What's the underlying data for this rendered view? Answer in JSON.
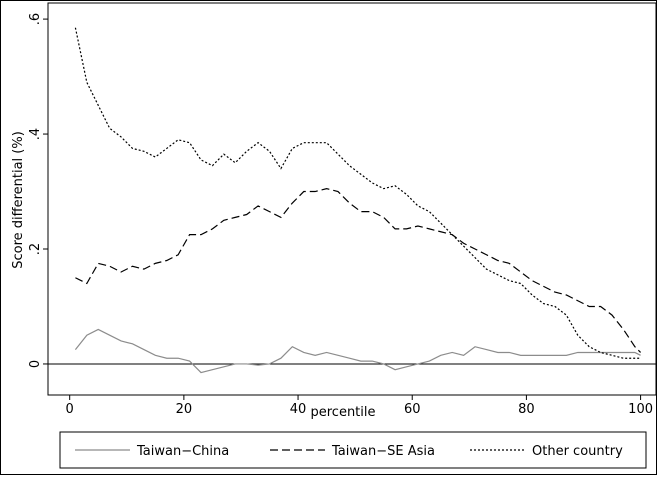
{
  "chart_data": {
    "type": "line",
    "ylabel": "Score differential (%)",
    "xlabel": "percentile",
    "x": [
      1,
      3,
      5,
      7,
      9,
      11,
      13,
      15,
      17,
      19,
      21,
      23,
      25,
      27,
      29,
      31,
      33,
      35,
      37,
      39,
      41,
      43,
      45,
      47,
      49,
      51,
      53,
      55,
      57,
      59,
      61,
      63,
      65,
      67,
      69,
      71,
      73,
      75,
      77,
      79,
      81,
      83,
      85,
      87,
      89,
      91,
      93,
      95,
      97,
      99,
      100
    ],
    "series": [
      {
        "name": "Taiwan−China",
        "color": "#8c8c8c",
        "dash": "solid",
        "values": [
          0.025,
          0.05,
          0.06,
          0.05,
          0.04,
          0.035,
          0.025,
          0.015,
          0.01,
          0.01,
          0.005,
          -0.015,
          -0.01,
          -0.005,
          0,
          0,
          -0.002,
          0,
          0.01,
          0.03,
          0.02,
          0.015,
          0.02,
          0.015,
          0.01,
          0.005,
          0.005,
          0,
          -0.01,
          -0.005,
          0,
          0.005,
          0.015,
          0.02,
          0.015,
          0.03,
          0.025,
          0.02,
          0.02,
          0.015,
          0.015,
          0.015,
          0.015,
          0.015,
          0.02,
          0.02,
          0.02,
          0.02,
          0.02,
          0.02,
          0.015
        ]
      },
      {
        "name": "Taiwan−SE Asia",
        "color": "#000000",
        "dash": "dashed",
        "values": [
          0.15,
          0.14,
          0.175,
          0.17,
          0.16,
          0.17,
          0.165,
          0.175,
          0.18,
          0.19,
          0.225,
          0.225,
          0.235,
          0.25,
          0.255,
          0.26,
          0.275,
          0.265,
          0.255,
          0.28,
          0.3,
          0.3,
          0.305,
          0.3,
          0.28,
          0.265,
          0.265,
          0.255,
          0.235,
          0.235,
          0.24,
          0.235,
          0.23,
          0.225,
          0.21,
          0.2,
          0.19,
          0.18,
          0.175,
          0.16,
          0.145,
          0.135,
          0.125,
          0.12,
          0.11,
          0.1,
          0.1,
          0.085,
          0.06,
          0.03,
          0.02
        ]
      },
      {
        "name": "Other country",
        "color": "#000000",
        "dash": "dotted",
        "values": [
          0.585,
          0.49,
          0.45,
          0.41,
          0.395,
          0.375,
          0.37,
          0.36,
          0.375,
          0.39,
          0.385,
          0.355,
          0.345,
          0.365,
          0.35,
          0.37,
          0.385,
          0.37,
          0.34,
          0.375,
          0.385,
          0.385,
          0.385,
          0.365,
          0.345,
          0.33,
          0.315,
          0.305,
          0.31,
          0.295,
          0.275,
          0.265,
          0.245,
          0.225,
          0.205,
          0.185,
          0.165,
          0.155,
          0.145,
          0.14,
          0.12,
          0.105,
          0.1,
          0.085,
          0.05,
          0.03,
          0.02,
          0.015,
          0.01,
          0.01,
          0.01
        ]
      }
    ],
    "xlim": [
      -3.8,
      102.7
    ],
    "ylim": [
      -0.054,
      0.628
    ],
    "xticks": [
      0,
      20,
      40,
      60,
      80,
      100
    ],
    "yticks": [
      0,
      {
        "value": 0.2,
        "label": ".2"
      },
      {
        "value": 0.4,
        "label": ".4"
      },
      {
        "value": 0.6,
        "label": ".6"
      }
    ],
    "legend": "bottom"
  }
}
